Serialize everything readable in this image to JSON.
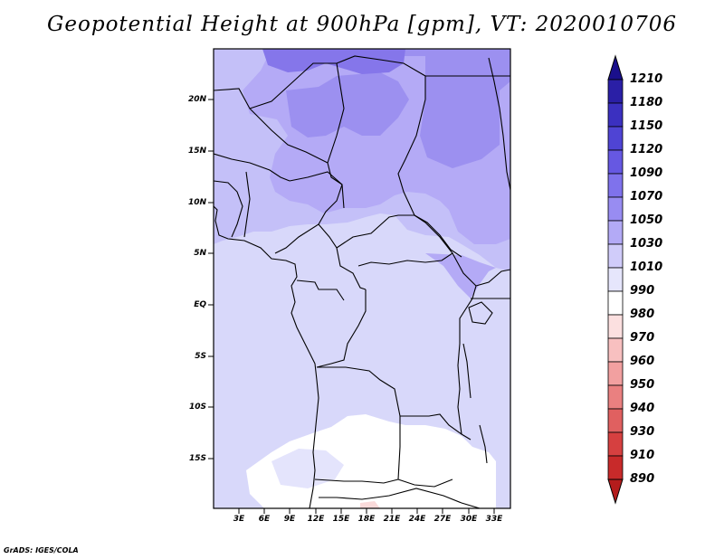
{
  "title": "Geopotential Height at 900hPa [gpm], VT: 2020010706",
  "credit": "GrADS: IGES/COLA",
  "map": {
    "lat_labels": [
      "20N",
      "15N",
      "10N",
      "5N",
      "EQ",
      "5S",
      "10S",
      "15S"
    ],
    "lon_labels": [
      "3E",
      "6E",
      "9E",
      "12E",
      "15E",
      "18E",
      "21E",
      "24E",
      "27E",
      "30E",
      "33E"
    ]
  },
  "colorbar": {
    "labels": [
      "1210",
      "1180",
      "1150",
      "1120",
      "1090",
      "1070",
      "1050",
      "1030",
      "1010",
      "990",
      "980",
      "970",
      "960",
      "950",
      "940",
      "930",
      "910",
      "890"
    ],
    "colors": [
      "#1a0f8c",
      "#2a1fa6",
      "#3b30c0",
      "#4f44d4",
      "#6658e2",
      "#7f72ec",
      "#988cf2",
      "#b3aaf6",
      "#d0ccfa",
      "#e6e6fc",
      "#ffffff",
      "#fce0e0",
      "#f8c0c0",
      "#f2a0a0",
      "#ea8080",
      "#e06060",
      "#d64040",
      "#c82a2a",
      "#b41c1c"
    ]
  },
  "legend_colors": {
    "lowest_shade": "#d8d8fa",
    "low_shade": "#c4c0f8",
    "mid_shade": "#b4aaf6",
    "high_shade": "#9c90f0",
    "highest_shade": "#8576ea",
    "white_area": "#ffffff",
    "red_patch": "#fadada"
  }
}
